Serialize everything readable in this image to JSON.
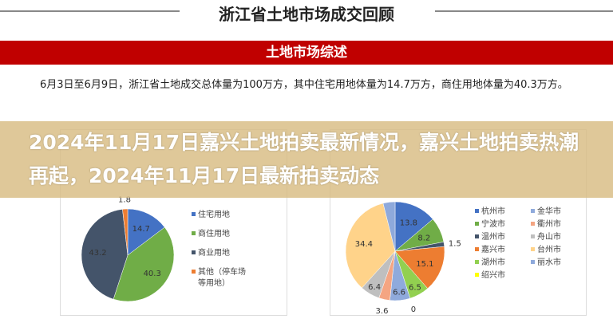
{
  "slide": {
    "heading": "浙江省土地市场成交回顾",
    "section": "土地市场综述",
    "paragraph": "6月3日至6月9日，浙江省土地成交总体量为100万方，其中住宅用地体量为14.7万方，商住用地体量为40.3万方。"
  },
  "overlay_title": "2024年11月17日嘉兴土地拍卖最新情况，嘉兴土地拍卖热潮再起，2024年11月17日最新拍卖动态",
  "chart_data": [
    {
      "type": "pie",
      "categories": [
        "住宅用地",
        "商住用地",
        "商业用地",
        "其他（停车场等用地）"
      ],
      "values": [
        14.7,
        40.3,
        43.2,
        1.8
      ],
      "colors": [
        "#4472c4",
        "#70ad47",
        "#44546a",
        "#ed7d31"
      ],
      "legend": "right"
    },
    {
      "type": "pie",
      "categories": [
        "杭州市",
        "宁波市",
        "温州市",
        "嘉兴市",
        "湖州市",
        "绍兴市",
        "金华市",
        "衢州市",
        "舟山市",
        "台州市",
        "丽水市"
      ],
      "values": [
        13.8,
        8.2,
        1.5,
        15.1,
        6.5,
        0,
        6.6,
        3.6,
        6.4,
        34.4,
        null
      ],
      "colors": [
        "#4472c4",
        "#70ad47",
        "#44546a",
        "#ed7d31",
        "#92d050",
        "#ffff00",
        "#8faadc",
        "#f4a582",
        "#bfbfbf",
        "#ffd38a",
        "#8ea9db"
      ],
      "legend": "right"
    }
  ]
}
